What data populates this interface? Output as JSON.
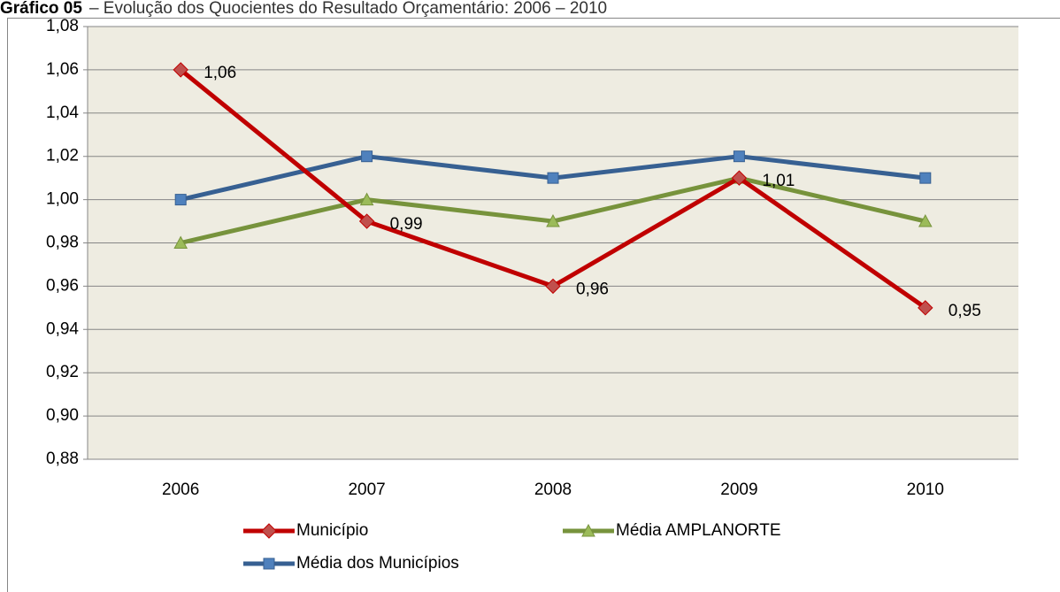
{
  "chart_data": {
    "type": "line",
    "title_prefix": "Gráfico 05",
    "title": "– Evolução dos Quocientes do Resultado Orçamentário: 2006 – 2010",
    "categories": [
      "2006",
      "2007",
      "2008",
      "2009",
      "2010"
    ],
    "series": [
      {
        "name": "Município",
        "color": "#c00000",
        "marker": "diamond",
        "marker_color": "#c0504d",
        "values": [
          1.06,
          0.99,
          0.96,
          1.01,
          0.95
        ],
        "value_labels": [
          "1,06",
          "0,99",
          "0,96",
          "1,01",
          "0,95"
        ]
      },
      {
        "name": "Média AMPLANORTE",
        "color": "#77933c",
        "marker": "triangle",
        "marker_color": "#9bbb59",
        "values": [
          0.98,
          1.0,
          0.99,
          1.01,
          0.99
        ]
      },
      {
        "name": "Média dos Municípios",
        "color": "#376092",
        "marker": "square",
        "marker_color": "#4f81bd",
        "values": [
          1.0,
          1.02,
          1.01,
          1.02,
          1.01
        ]
      }
    ],
    "ylim": [
      0.88,
      1.08
    ],
    "yticks": [
      {
        "value": 0.88,
        "label": "0,88"
      },
      {
        "value": 0.9,
        "label": "0,90"
      },
      {
        "value": 0.92,
        "label": "0,92"
      },
      {
        "value": 0.94,
        "label": "0,94"
      },
      {
        "value": 0.96,
        "label": "0,96"
      },
      {
        "value": 0.98,
        "label": "0,98"
      },
      {
        "value": 1.0,
        "label": "1,00"
      },
      {
        "value": 1.02,
        "label": "1,02"
      },
      {
        "value": 1.04,
        "label": "1,04"
      },
      {
        "value": 1.06,
        "label": "1,06"
      },
      {
        "value": 1.08,
        "label": "1,08"
      }
    ],
    "grid": true
  }
}
